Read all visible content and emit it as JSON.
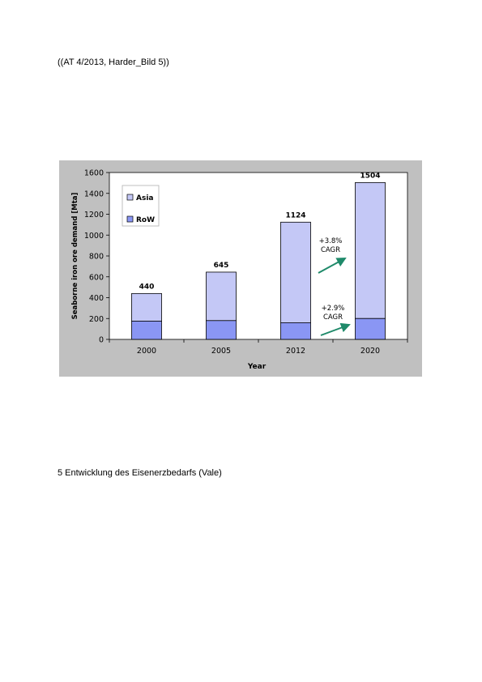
{
  "document": {
    "header": "((AT 4/2013, Harder_Bild 5))",
    "caption": "5 Entwicklung des Eisenerzbedarfs (Vale)"
  },
  "colors": {
    "asia": "#c4c8f6",
    "row": "#8a96f4",
    "arrow": "#1f8a6a",
    "panel": "#c0c0c0",
    "plot": "#ffffff"
  },
  "chart_data": {
    "type": "bar",
    "stacked": true,
    "categories": [
      "2000",
      "2005",
      "2012",
      "2020"
    ],
    "series": [
      {
        "name": "RoW",
        "values": [
          175,
          180,
          160,
          200
        ]
      },
      {
        "name": "Asia",
        "values": [
          265,
          465,
          964,
          1304
        ]
      }
    ],
    "totals": [
      "440",
      "645",
      "1124",
      "1504"
    ],
    "xlabel": "Year",
    "ylabel": "Seaborne iron ore demand [Mta]",
    "ylim": [
      0,
      1600
    ],
    "yticks": [
      "0",
      "200",
      "400",
      "600",
      "800",
      "1000",
      "1200",
      "1400",
      "1600"
    ],
    "legend": {
      "position": "top-left",
      "entries": [
        "Asia",
        "RoW"
      ]
    },
    "grid": false,
    "annotations": [
      {
        "text": [
          "+3.8%",
          "CAGR"
        ],
        "applies_to": "Asia"
      },
      {
        "text": [
          "+2.9%",
          "CAGR"
        ],
        "applies_to": "RoW"
      }
    ]
  }
}
